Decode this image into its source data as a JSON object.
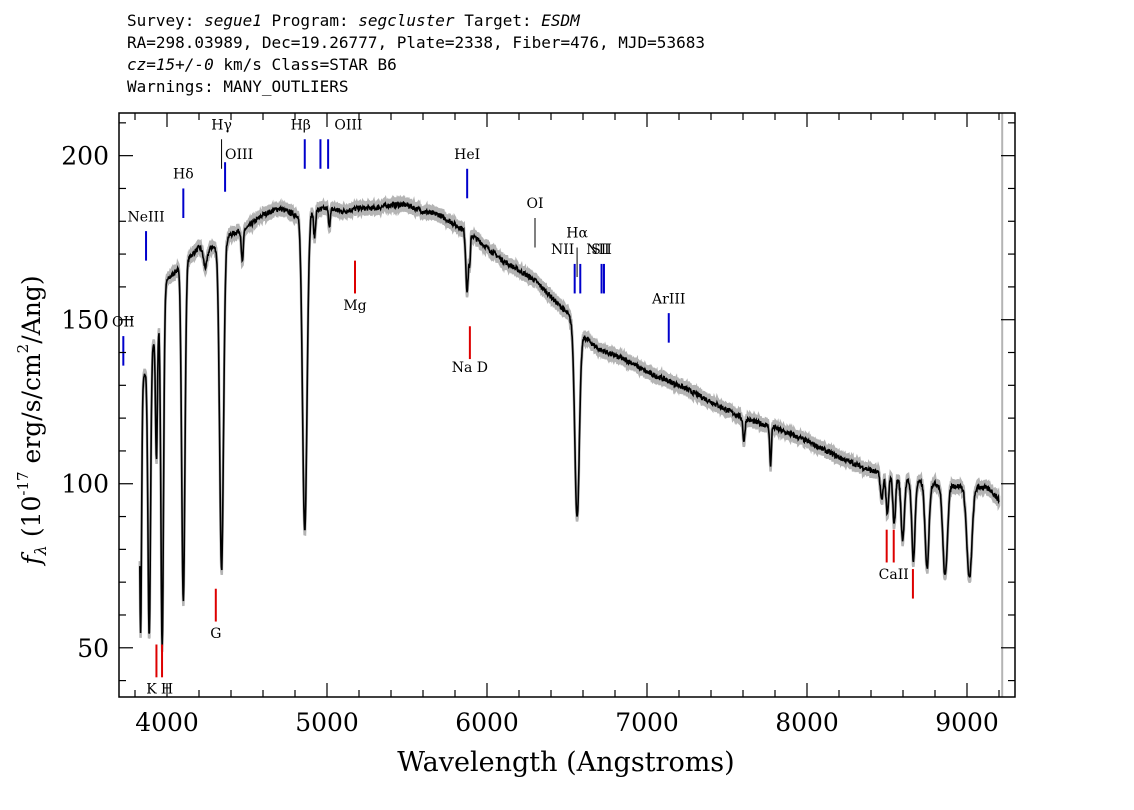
{
  "header": {
    "survey_label": "Survey:",
    "survey": "segue1",
    "program_label": "Program:",
    "program": "segcluster",
    "target_label": "Target:",
    "target": "ESDM",
    "line2": "RA=298.03989, Dec=19.26777, Plate=2338, Fiber=476, MJD=53683",
    "cz": "cz=15+/-0",
    "cz_unit_class": "km/s Class=STAR B6",
    "warnings": "Warnings: MANY_OUTLIERS"
  },
  "chart_data": {
    "type": "line",
    "xlabel": "Wavelength (Angstroms)",
    "ylabel_prefix": "f",
    "ylabel_sub": "λ",
    "ylabel_main": "(10",
    "ylabel_exp": "-17",
    "ylabel_units": "erg/s/cm",
    "ylabel_exp2": "2",
    "ylabel_tail": "/Ang)",
    "xlim": [
      3700,
      9300
    ],
    "ylim": [
      35,
      213
    ],
    "x_ticks": [
      4000,
      5000,
      6000,
      7000,
      8000,
      9000
    ],
    "x_tick_labels": [
      "4000",
      "5000",
      "6000",
      "7000",
      "8000",
      "9000"
    ],
    "y_ticks": [
      50,
      100,
      150,
      200
    ],
    "y_tick_labels": [
      "50",
      "100",
      "150",
      "200"
    ],
    "colors": {
      "spectrum": "#000000",
      "error_band": "#b4b4b4",
      "emission": "#0000cc",
      "absorption": "#dd0000",
      "neutral": "#000000"
    },
    "continuum": [
      [
        3830,
        128
      ],
      [
        3900,
        140
      ],
      [
        4000,
        162
      ],
      [
        4100,
        167
      ],
      [
        4200,
        172
      ],
      [
        4300,
        172
      ],
      [
        4400,
        176
      ],
      [
        4500,
        178
      ],
      [
        4600,
        182
      ],
      [
        4700,
        184
      ],
      [
        4800,
        182
      ],
      [
        4900,
        183
      ],
      [
        5000,
        184
      ],
      [
        5100,
        183
      ],
      [
        5200,
        184
      ],
      [
        5300,
        184
      ],
      [
        5400,
        185
      ],
      [
        5500,
        185
      ],
      [
        5600,
        183
      ],
      [
        5700,
        182
      ],
      [
        5800,
        179
      ],
      [
        5900,
        176
      ],
      [
        6000,
        172
      ],
      [
        6100,
        168
      ],
      [
        6200,
        165
      ],
      [
        6300,
        162
      ],
      [
        6400,
        157
      ],
      [
        6500,
        152
      ],
      [
        6600,
        145
      ],
      [
        6700,
        141
      ],
      [
        6800,
        139
      ],
      [
        6900,
        137
      ],
      [
        7000,
        134
      ],
      [
        7100,
        132
      ],
      [
        7200,
        130
      ],
      [
        7400,
        125
      ],
      [
        7600,
        120
      ],
      [
        7800,
        117
      ],
      [
        8000,
        113
      ],
      [
        8200,
        108
      ],
      [
        8400,
        104
      ],
      [
        8600,
        101
      ],
      [
        8800,
        100
      ],
      [
        9000,
        99
      ],
      [
        9100,
        99
      ],
      [
        9150,
        98
      ],
      [
        9200,
        95
      ]
    ],
    "absorption_features": [
      {
        "center": 3835,
        "depth": 74,
        "width": 6
      },
      {
        "center": 3889,
        "depth": 85,
        "width": 8
      },
      {
        "center": 3934,
        "depth": 40,
        "width": 6
      },
      {
        "center": 3970,
        "depth": 105,
        "width": 8
      },
      {
        "center": 4102,
        "depth": 103,
        "width": 10
      },
      {
        "center": 4240,
        "depth": 6,
        "width": 12
      },
      {
        "center": 4341,
        "depth": 100,
        "width": 12
      },
      {
        "center": 4471,
        "depth": 10,
        "width": 6
      },
      {
        "center": 4861,
        "depth": 97,
        "width": 14
      },
      {
        "center": 4922,
        "depth": 8,
        "width": 6
      },
      {
        "center": 5015,
        "depth": 5,
        "width": 6
      },
      {
        "center": 5876,
        "depth": 18,
        "width": 8
      },
      {
        "center": 5893,
        "depth": 8,
        "width": 4
      },
      {
        "center": 6563,
        "depth": 58,
        "width": 14
      },
      {
        "center": 7606,
        "depth": 7,
        "width": 6
      },
      {
        "center": 7772,
        "depth": 12,
        "width": 5
      },
      {
        "center": 8467,
        "depth": 8,
        "width": 8
      },
      {
        "center": 8502,
        "depth": 12,
        "width": 8
      },
      {
        "center": 8545,
        "depth": 14,
        "width": 8
      },
      {
        "center": 8598,
        "depth": 18,
        "width": 10
      },
      {
        "center": 8665,
        "depth": 24,
        "width": 10
      },
      {
        "center": 8750,
        "depth": 26,
        "width": 12
      },
      {
        "center": 8863,
        "depth": 28,
        "width": 14
      },
      {
        "center": 9015,
        "depth": 28,
        "width": 16
      },
      {
        "center": 9230,
        "depth": 14,
        "width": 10
      }
    ],
    "error_band_halfwidth": 1.5,
    "right_marker_x": 9220,
    "lines": [
      {
        "label": "OII",
        "wave": 3727,
        "color": "emission",
        "y_bottom": 136,
        "y_top": 145,
        "label_y": 148,
        "label_dx": 0
      },
      {
        "label": "NeIII",
        "wave": 3869,
        "color": "emission",
        "y_bottom": 168,
        "y_top": 177,
        "label_y": 180,
        "label_dx": 0
      },
      {
        "label": "Hδ",
        "wave": 4102,
        "color": "emission",
        "y_bottom": 181,
        "y_top": 190,
        "label_y": 193,
        "label_dx": 0
      },
      {
        "label": "OIII",
        "wave": 4363,
        "color": "emission",
        "y_bottom": 189,
        "y_top": 198,
        "label_y": 199,
        "label_dx": 14
      },
      {
        "label": "Hγ",
        "wave": 4341,
        "color": "neutral",
        "y_bottom": 196,
        "y_top": 205,
        "label_y": 208,
        "label_dx": 0
      },
      {
        "label": "Hβ",
        "wave": 4861,
        "color": "emission",
        "y_bottom": 196,
        "y_top": 205,
        "label_y": 208,
        "label_dx": -4
      },
      {
        "label": "OIII",
        "wave": 4959,
        "color": "emission",
        "y_bottom": 196,
        "y_top": 205,
        "label_y": 208,
        "label_dx": 28
      },
      {
        "label": "",
        "wave": 5007,
        "color": "emission",
        "y_bottom": 196,
        "y_top": 205,
        "label_y": 0,
        "label_dx": 0
      },
      {
        "label": "HeI",
        "wave": 5876,
        "color": "emission",
        "y_bottom": 187,
        "y_top": 196,
        "label_y": 199,
        "label_dx": 0
      },
      {
        "label": "OI",
        "wave": 6300,
        "color": "neutral",
        "y_bottom": 172,
        "y_top": 181,
        "label_y": 184,
        "label_dx": 0
      },
      {
        "label": "NII",
        "wave": 6548,
        "color": "emission",
        "y_bottom": 158,
        "y_top": 167,
        "label_y": 170,
        "label_dx": -12
      },
      {
        "label": "Hα",
        "wave": 6563,
        "color": "neutral",
        "y_bottom": 163,
        "y_top": 172,
        "label_y": 175,
        "label_dx": 0
      },
      {
        "label": "",
        "wave": 6583,
        "color": "emission",
        "y_bottom": 158,
        "y_top": 167,
        "label_y": 0,
        "label_dx": 0
      },
      {
        "label": "SII",
        "wave": 6716,
        "color": "emission",
        "y_bottom": 158,
        "y_top": 167,
        "label_y": 170,
        "label_dx": 0
      },
      {
        "label": "NII",
        "wave": 6731,
        "color": "emission",
        "y_bottom": 158,
        "y_top": 167,
        "label_y": 170,
        "label_dx": -6
      },
      {
        "label": "ArIII",
        "wave": 7136,
        "color": "emission",
        "y_bottom": 143,
        "y_top": 152,
        "label_y": 155,
        "label_dx": 0
      },
      {
        "label": "Mg",
        "wave": 5175,
        "color": "absorption",
        "y_bottom": 158,
        "y_top": 168,
        "label_y": 153,
        "label_dx": 0
      },
      {
        "label": "Na D",
        "wave": 5893,
        "color": "absorption",
        "y_bottom": 138,
        "y_top": 148,
        "label_y": 134,
        "label_dx": 0
      },
      {
        "label": "G",
        "wave": 4305,
        "color": "absorption",
        "y_bottom": 58,
        "y_top": 68,
        "label_y": 53,
        "label_dx": 0
      },
      {
        "label": "K",
        "wave": 3934,
        "color": "absorption",
        "y_bottom": 41,
        "y_top": 51,
        "label_y": 36,
        "label_dx": -5
      },
      {
        "label": "H",
        "wave": 3969,
        "color": "absorption",
        "y_bottom": 41,
        "y_top": 51,
        "label_y": 36,
        "label_dx": 5
      },
      {
        "label": "CaII",
        "wave": 8498,
        "color": "absorption",
        "y_bottom": 76,
        "y_top": 86,
        "label_y": 0,
        "label_dx": 0
      },
      {
        "label": "",
        "wave": 8542,
        "color": "absorption",
        "y_bottom": 76,
        "y_top": 86,
        "label_y": 0,
        "label_dx": 0
      },
      {
        "label": "",
        "wave": 8662,
        "color": "absorption",
        "y_bottom": 65,
        "y_top": 74,
        "label_y": 0,
        "label_dx": 0
      },
      {
        "label": "CaII",
        "wave": 8542,
        "color": "absorption",
        "y_bottom": 0,
        "y_top": 0,
        "label_y": 71,
        "label_dx": 0
      }
    ]
  }
}
